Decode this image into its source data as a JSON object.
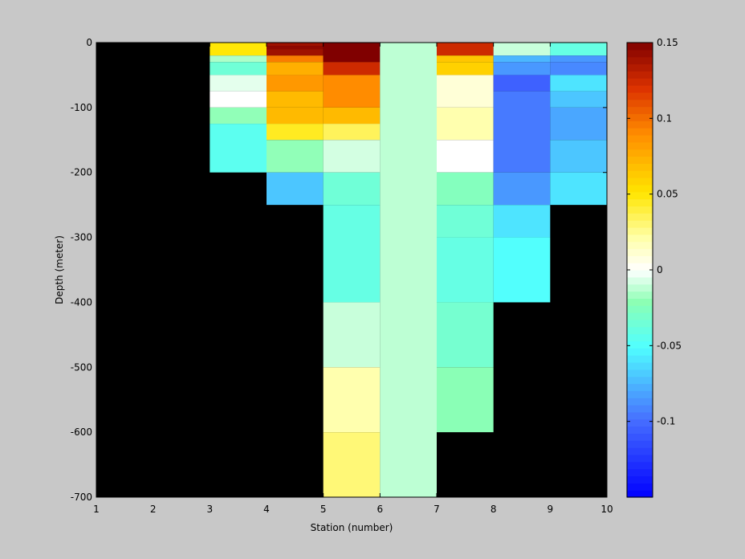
{
  "chart_data": {
    "type": "heatmap",
    "xlabel": "Station (number)",
    "ylabel": "Depth (meter)",
    "xlim": [
      1,
      10
    ],
    "ylim": [
      -700,
      0
    ],
    "x_ticks": [
      1,
      2,
      3,
      4,
      5,
      6,
      7,
      8,
      9,
      10
    ],
    "y_ticks": [
      0,
      -100,
      -200,
      -300,
      -400,
      -500,
      -600,
      -700
    ],
    "background": "#000000",
    "colorbar": {
      "range": [
        -0.15,
        0.15
      ],
      "ticks": [
        0.15,
        0.1,
        0.05,
        0,
        -0.05,
        -0.1
      ],
      "tick_labels": [
        "0.15",
        "0.1",
        "0.05",
        "0",
        "-0.05",
        "-0.1"
      ],
      "colormap": "jet-white-center",
      "steps": 64
    },
    "columns": [
      {
        "x0": 3,
        "x1": 4,
        "cells": [
          {
            "top": 0,
            "bottom": -20,
            "value": 0.05
          },
          {
            "top": -20,
            "bottom": -30,
            "value": -0.015
          },
          {
            "top": -30,
            "bottom": -50,
            "value": -0.035
          },
          {
            "top": -50,
            "bottom": -75,
            "value": -0.005
          },
          {
            "top": -75,
            "bottom": -100,
            "value": 0.0
          },
          {
            "top": -100,
            "bottom": -125,
            "value": -0.02
          },
          {
            "top": -125,
            "bottom": -200,
            "value": -0.045
          }
        ]
      },
      {
        "x0": 4,
        "x1": 5,
        "cells": [
          {
            "top": 0,
            "bottom": -5,
            "value": 0.14
          },
          {
            "top": -5,
            "bottom": -10,
            "value": 0.145
          },
          {
            "top": -10,
            "bottom": -20,
            "value": 0.14
          },
          {
            "top": -20,
            "bottom": -30,
            "value": 0.095
          },
          {
            "top": -30,
            "bottom": -50,
            "value": 0.075
          },
          {
            "top": -50,
            "bottom": -75,
            "value": 0.085
          },
          {
            "top": -75,
            "bottom": -100,
            "value": 0.07
          },
          {
            "top": -100,
            "bottom": -125,
            "value": 0.07
          },
          {
            "top": -125,
            "bottom": -150,
            "value": 0.045
          },
          {
            "top": -150,
            "bottom": -200,
            "value": -0.02
          },
          {
            "top": -200,
            "bottom": -250,
            "value": -0.07
          }
        ]
      },
      {
        "x0": 5,
        "x1": 6,
        "cells": [
          {
            "top": 0,
            "bottom": -30,
            "value": 0.15
          },
          {
            "top": -30,
            "bottom": -50,
            "value": 0.125
          },
          {
            "top": -50,
            "bottom": -100,
            "value": 0.09
          },
          {
            "top": -100,
            "bottom": -125,
            "value": 0.07
          },
          {
            "top": -125,
            "bottom": -150,
            "value": 0.035
          },
          {
            "top": -150,
            "bottom": -200,
            "value": -0.008
          },
          {
            "top": -200,
            "bottom": -250,
            "value": -0.035
          },
          {
            "top": -250,
            "bottom": -400,
            "value": -0.04
          },
          {
            "top": -400,
            "bottom": -500,
            "value": -0.01
          },
          {
            "top": -500,
            "bottom": -600,
            "value": 0.02
          },
          {
            "top": -600,
            "bottom": -700,
            "value": 0.03
          }
        ]
      },
      {
        "x0": 6,
        "x1": 7,
        "cells": [
          {
            "top": 0,
            "bottom": -700,
            "value": -0.012
          }
        ]
      },
      {
        "x0": 7,
        "x1": 8,
        "cells": [
          {
            "top": 0,
            "bottom": -20,
            "value": 0.125
          },
          {
            "top": -20,
            "bottom": -30,
            "value": 0.065
          },
          {
            "top": -30,
            "bottom": -50,
            "value": 0.06
          },
          {
            "top": -50,
            "bottom": -100,
            "value": 0.01
          },
          {
            "top": -100,
            "bottom": -150,
            "value": 0.02
          },
          {
            "top": -150,
            "bottom": -200,
            "value": 0.0
          },
          {
            "top": -200,
            "bottom": -250,
            "value": -0.025
          },
          {
            "top": -250,
            "bottom": -300,
            "value": -0.035
          },
          {
            "top": -300,
            "bottom": -400,
            "value": -0.04
          },
          {
            "top": -400,
            "bottom": -500,
            "value": -0.032
          },
          {
            "top": -500,
            "bottom": -600,
            "value": -0.022
          }
        ]
      },
      {
        "x0": 8,
        "x1": 9,
        "cells": [
          {
            "top": 0,
            "bottom": -20,
            "value": -0.01
          },
          {
            "top": -20,
            "bottom": -30,
            "value": -0.075
          },
          {
            "top": -30,
            "bottom": -50,
            "value": -0.085
          },
          {
            "top": -50,
            "bottom": -75,
            "value": -0.105
          },
          {
            "top": -75,
            "bottom": -200,
            "value": -0.095
          },
          {
            "top": -200,
            "bottom": -250,
            "value": -0.085
          },
          {
            "top": -250,
            "bottom": -300,
            "value": -0.06
          },
          {
            "top": -300,
            "bottom": -400,
            "value": -0.05
          }
        ]
      },
      {
        "x0": 9,
        "x1": 10,
        "cells": [
          {
            "top": 0,
            "bottom": -20,
            "value": -0.04
          },
          {
            "top": -20,
            "bottom": -30,
            "value": -0.085
          },
          {
            "top": -30,
            "bottom": -50,
            "value": -0.09
          },
          {
            "top": -50,
            "bottom": -75,
            "value": -0.06
          },
          {
            "top": -75,
            "bottom": -100,
            "value": -0.07
          },
          {
            "top": -100,
            "bottom": -150,
            "value": -0.08
          },
          {
            "top": -150,
            "bottom": -200,
            "value": -0.07
          },
          {
            "top": -200,
            "bottom": -250,
            "value": -0.06
          }
        ]
      }
    ]
  }
}
